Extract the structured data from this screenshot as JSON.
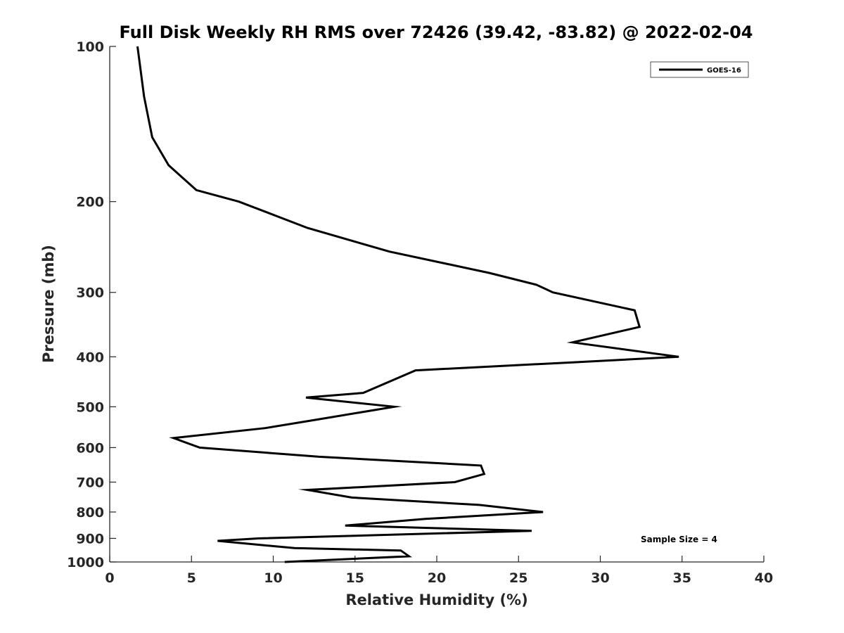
{
  "chart_data": {
    "type": "line",
    "title": "Full Disk Weekly RH RMS over 72426 (39.42, -83.82) @ 2022-02-04",
    "xlabel": "Relative Humidity (%)",
    "ylabel": "Pressure (mb)",
    "xlim": [
      0,
      40
    ],
    "ylim": [
      100,
      1000
    ],
    "yscale": "log",
    "y_reversed": true,
    "x_ticks": [
      0,
      5,
      10,
      15,
      20,
      25,
      30,
      35,
      40
    ],
    "y_ticks": [
      100,
      200,
      300,
      400,
      500,
      600,
      700,
      800,
      900,
      1000
    ],
    "grid": false,
    "legend": {
      "position": "top-right",
      "entries": [
        "GOES-16"
      ]
    },
    "annotations": [
      {
        "text": "Sample Size = 4",
        "position": "bottom-right"
      }
    ],
    "series": [
      {
        "name": "GOES-16",
        "color": "#000000",
        "x": [
          1.7,
          2.1,
          2.6,
          3.6,
          5.3,
          7.9,
          12.1,
          17.1,
          23.2,
          26.1,
          27.1,
          32.1,
          32.4,
          28.3,
          34.8,
          28.3,
          18.7,
          15.5,
          12.0,
          17.4,
          12.6,
          9.5,
          3.9,
          5.5,
          12.8,
          22.7,
          22.9,
          21.1,
          12.1,
          14.8,
          22.6,
          26.5,
          19.3,
          14.4,
          25.8,
          9.1,
          6.6,
          11.3,
          17.8,
          18.3,
          10.7
        ],
        "y": [
          100,
          125,
          150,
          170,
          190,
          200,
          225,
          250,
          275,
          290,
          300,
          325,
          350,
          375,
          400,
          410,
          425,
          470,
          480,
          500,
          530,
          550,
          575,
          600,
          625,
          650,
          675,
          700,
          725,
          750,
          775,
          800,
          825,
          850,
          870,
          900,
          910,
          940,
          950,
          975,
          1000
        ]
      }
    ]
  }
}
